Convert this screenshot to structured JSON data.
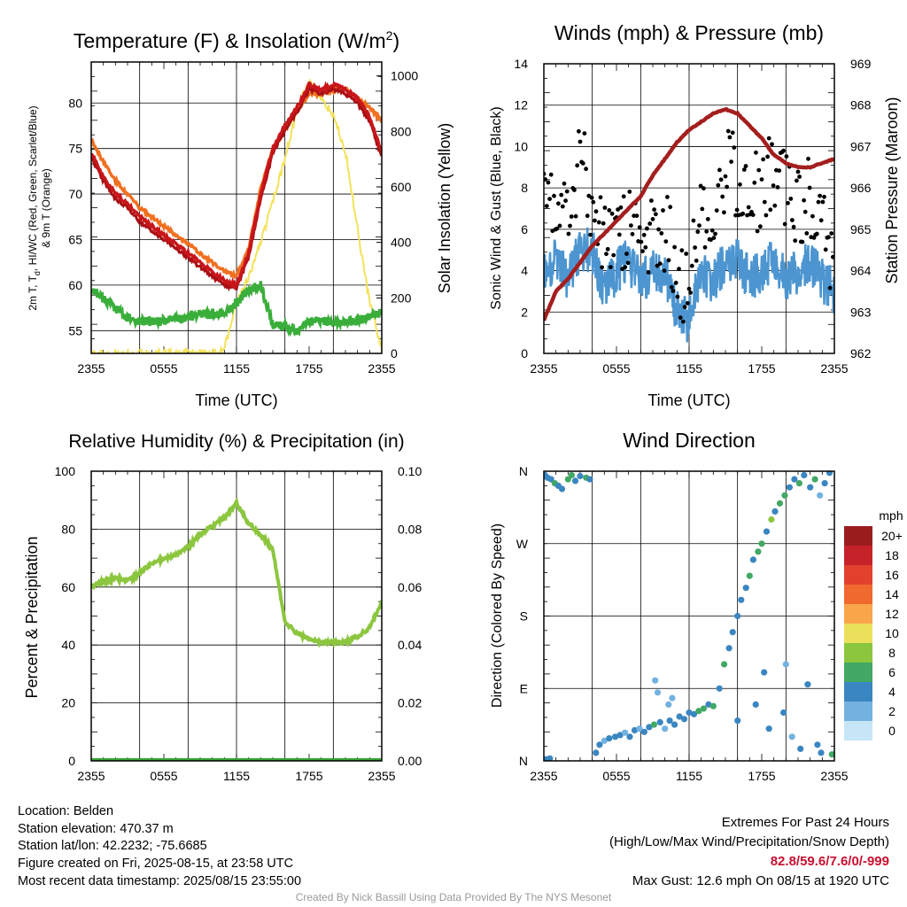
{
  "colors": {
    "temp": "#c8161b",
    "dewpoint": "#3aae3a",
    "hi_wc": "#2e8b2e",
    "temp9m": "#f07020",
    "solar": "#f3e25a",
    "sonic_wind": "#4c95d0",
    "gust": "#000000",
    "pressure": "#a41e1e",
    "rh": "#8cc63f",
    "precip": "#3aa63a"
  },
  "charts": {
    "temp": {
      "title": "Temperature (F) & Insolation (W/m",
      "title_sup": "2",
      "title_end": ")",
      "ylabel_left_line1": "2m T, T",
      "ylabel_left_sub": "d",
      "ylabel_left_line1_end": ", HI/WC (Red, Green, Scarlet/Blue)",
      "ylabel_left_line2": "& 9m T (Orange)",
      "ylabel_right": "Solar Insolation (Yellow)",
      "xlabel": "Time (UTC)"
    },
    "wind": {
      "title": "Winds (mph) & Pressure (mb)",
      "ylabel_left": "Sonic Wind & Gust (Blue, Black)",
      "ylabel_right": "Station Pressure (Maroon)",
      "xlabel": "Time (UTC)"
    },
    "rh": {
      "title": "Relative Humidity (%) & Precipitation (in)",
      "ylabel_left": "Percent & Precipitation"
    },
    "dir": {
      "title": "Wind Direction",
      "ylabel_left": "Direction (Colored By Speed)",
      "legend_title": "mph",
      "legend_labels": [
        "20+",
        "18",
        "16",
        "14",
        "12",
        "10",
        "8",
        "6",
        "4",
        "2",
        "0"
      ],
      "legend_colors": [
        "#9b1c1f",
        "#c5222a",
        "#e2412e",
        "#f0692f",
        "#f9a64a",
        "#ebe05c",
        "#8cc63f",
        "#42a864",
        "#3a86c1",
        "#73b2e0",
        "#c6e6f7"
      ]
    }
  },
  "chart_data": [
    {
      "type": "line",
      "title": "Temperature (F) & Insolation (W/m2)",
      "xlabel": "Time (UTC)",
      "ylabel": "2m T, Td, HI/WC (Red, Green, Scarlet/Blue) & 9m T (Orange)",
      "y2label": "Solar Insolation (Yellow)",
      "x_ticks": [
        "2355",
        "0555",
        "1155",
        "1755",
        "2355"
      ],
      "ylim": [
        52.5,
        84.5
      ],
      "y_ticks": [
        55,
        60,
        65,
        70,
        75,
        80
      ],
      "y2lim": [
        0,
        1050
      ],
      "y2_ticks": [
        0,
        200,
        400,
        600,
        800,
        1000
      ],
      "x_hours": [
        0,
        1,
        2,
        3,
        4,
        5,
        6,
        7,
        8,
        9,
        10,
        11,
        12,
        13,
        14,
        15,
        16,
        17,
        18,
        19,
        20,
        21,
        22,
        23,
        24
      ],
      "series": [
        {
          "name": "2m T",
          "axis": "left",
          "values": [
            74.5,
            72.0,
            70.0,
            69.0,
            67.5,
            66.5,
            65.5,
            64.5,
            63.5,
            62.5,
            61.5,
            60.5,
            60.0,
            63.5,
            70.0,
            75.0,
            77.5,
            79.5,
            82.0,
            81.5,
            82.0,
            81.5,
            80.5,
            78.5,
            74.5
          ]
        },
        {
          "name": "HI/WC",
          "axis": "left",
          "values": [
            74.0,
            71.5,
            69.5,
            68.5,
            67.0,
            66.0,
            65.0,
            64.0,
            63.0,
            62.0,
            61.0,
            60.0,
            59.7,
            63.0,
            69.5,
            74.5,
            77.0,
            79.0,
            81.5,
            81.0,
            81.5,
            81.0,
            80.0,
            78.0,
            74.0
          ]
        },
        {
          "name": "9m T",
          "axis": "left",
          "values": [
            76.0,
            73.5,
            71.5,
            70.0,
            68.5,
            67.5,
            66.5,
            65.5,
            64.5,
            63.5,
            62.5,
            61.5,
            61.0,
            64.0,
            70.5,
            75.0,
            77.0,
            79.0,
            81.0,
            81.0,
            81.5,
            81.5,
            80.5,
            79.5,
            78.0
          ]
        },
        {
          "name": "Td",
          "axis": "left",
          "values": [
            59.5,
            58.5,
            57.5,
            56.5,
            56.0,
            56.0,
            56.0,
            56.3,
            56.5,
            56.8,
            56.8,
            57.0,
            58.0,
            59.5,
            60.0,
            55.5,
            55.5,
            55.0,
            56.0,
            56.0,
            56.0,
            56.0,
            56.0,
            56.5,
            57.0
          ]
        },
        {
          "name": "Solar Insolation",
          "axis": "right",
          "values": [
            0,
            0,
            0,
            0,
            0,
            0,
            0,
            0,
            0,
            0,
            0,
            20,
            180,
            270,
            400,
            550,
            700,
            880,
            980,
            920,
            860,
            730,
            450,
            180,
            20
          ]
        }
      ]
    },
    {
      "type": "line",
      "title": "Winds (mph) & Pressure (mb)",
      "xlabel": "Time (UTC)",
      "ylabel": "Sonic Wind & Gust (Blue, Black)",
      "y2label": "Station Pressure (Maroon)",
      "x_ticks": [
        "2355",
        "0555",
        "1155",
        "1755",
        "2355"
      ],
      "ylim": [
        0,
        14
      ],
      "y_ticks": [
        0,
        2,
        4,
        6,
        8,
        10,
        12,
        14
      ],
      "y2lim": [
        962,
        969
      ],
      "y2_ticks": [
        962,
        963,
        964,
        965,
        966,
        967,
        968,
        969
      ],
      "x_hours": [
        0,
        1,
        2,
        3,
        4,
        5,
        6,
        7,
        8,
        9,
        10,
        11,
        12,
        13,
        14,
        15,
        16,
        17,
        18,
        19,
        20,
        21,
        22,
        23,
        24
      ],
      "series": [
        {
          "name": "Sonic Wind",
          "axis": "left",
          "values": [
            4.0,
            4.5,
            3.5,
            5.0,
            5.0,
            3.0,
            4.0,
            4.5,
            3.5,
            4.0,
            4.0,
            2.0,
            1.5,
            4.0,
            3.5,
            4.5,
            4.5,
            3.5,
            4.0,
            4.5,
            3.5,
            4.0,
            4.5,
            3.5,
            3.0
          ]
        },
        {
          "name": "Gust",
          "axis": "left",
          "values": [
            7.0,
            8.0,
            6.0,
            10.0,
            6.5,
            5.5,
            5.0,
            6.0,
            5.0,
            5.5,
            6.0,
            4.0,
            3.0,
            7.0,
            6.5,
            9.0,
            8.5,
            7.5,
            8.0,
            9.0,
            8.0,
            7.0,
            7.5,
            6.0,
            4.0
          ]
        },
        {
          "name": "Station Pressure",
          "axis": "right",
          "values": [
            962.8,
            963.5,
            963.8,
            964.2,
            964.6,
            964.9,
            965.2,
            965.5,
            965.8,
            966.3,
            966.7,
            967.1,
            967.4,
            967.6,
            967.8,
            967.9,
            967.8,
            967.5,
            967.2,
            966.8,
            966.6,
            966.5,
            966.5,
            966.6,
            966.7
          ]
        }
      ]
    },
    {
      "type": "line",
      "title": "Relative Humidity (%) & Precipitation (in)",
      "ylabel": "Percent & Precipitation",
      "x_ticks": [
        "2355",
        "0555",
        "1155",
        "1755",
        "2355"
      ],
      "ylim": [
        0,
        100
      ],
      "y_ticks": [
        0,
        20,
        40,
        60,
        80,
        100
      ],
      "y2lim": [
        0,
        0.1
      ],
      "y2_ticks": [
        "0.00",
        "0.02",
        "0.04",
        "0.06",
        "0.08",
        "0.10"
      ],
      "x_hours": [
        0,
        1,
        2,
        3,
        4,
        5,
        6,
        7,
        8,
        9,
        10,
        11,
        12,
        13,
        14,
        15,
        16,
        17,
        18,
        19,
        20,
        21,
        22,
        23,
        24
      ],
      "series": [
        {
          "name": "RH",
          "axis": "left",
          "values": [
            60,
            62,
            63,
            62,
            65,
            68,
            70,
            71,
            74,
            78,
            81,
            84,
            89,
            82,
            78,
            73,
            48,
            44,
            42,
            41,
            41,
            41,
            43,
            46,
            55
          ]
        },
        {
          "name": "Precipitation",
          "axis": "right",
          "values": [
            0,
            0,
            0,
            0,
            0,
            0,
            0,
            0,
            0,
            0,
            0,
            0,
            0,
            0,
            0,
            0,
            0,
            0,
            0,
            0,
            0,
            0,
            0,
            0,
            0
          ]
        }
      ]
    },
    {
      "type": "scatter",
      "title": "Wind Direction",
      "ylabel": "Direction (Colored By Speed)",
      "x_ticks": [
        "2355",
        "0555",
        "1155",
        "1755",
        "2355"
      ],
      "y_ticks": [
        "N",
        "E",
        "S",
        "W",
        "N"
      ],
      "ylim": [
        0,
        360
      ],
      "colorbar_label": "mph",
      "points_hour_deg_mph": [
        [
          0.1,
          355,
          3
        ],
        [
          0.3,
          352,
          3
        ],
        [
          0.6,
          350,
          4
        ],
        [
          0.9,
          345,
          5
        ],
        [
          1.2,
          342,
          3
        ],
        [
          1.5,
          338,
          4
        ],
        [
          2.0,
          350,
          6
        ],
        [
          2.3,
          355,
          5
        ],
        [
          2.6,
          348,
          4
        ],
        [
          3.0,
          354,
          3
        ],
        [
          3.5,
          352,
          6
        ],
        [
          3.8,
          350,
          4
        ],
        [
          0.2,
          2,
          4
        ],
        [
          0.5,
          3,
          4
        ],
        [
          4.3,
          10,
          3
        ],
        [
          4.6,
          20,
          4
        ],
        [
          5.0,
          25,
          2
        ],
        [
          5.4,
          28,
          3
        ],
        [
          5.9,
          30,
          4
        ],
        [
          6.3,
          32,
          3
        ],
        [
          6.7,
          35,
          2
        ],
        [
          7.1,
          30,
          4
        ],
        [
          7.5,
          38,
          3
        ],
        [
          7.9,
          40,
          2
        ],
        [
          8.3,
          36,
          4
        ],
        [
          8.7,
          42,
          3
        ],
        [
          9.1,
          45,
          5
        ],
        [
          9.6,
          48,
          4
        ],
        [
          10.0,
          40,
          2
        ],
        [
          10.4,
          50,
          3
        ],
        [
          10.8,
          45,
          4
        ],
        [
          11.2,
          55,
          4
        ],
        [
          11.6,
          52,
          3
        ],
        [
          12.0,
          60,
          4
        ],
        [
          12.4,
          58,
          3
        ],
        [
          12.8,
          62,
          5
        ],
        [
          13.2,
          65,
          6
        ],
        [
          13.6,
          70,
          4
        ],
        [
          14.0,
          68,
          5
        ],
        [
          9.2,
          100,
          1
        ],
        [
          9.4,
          85,
          2
        ],
        [
          10.3,
          70,
          1
        ],
        [
          10.6,
          78,
          2
        ],
        [
          14.5,
          90,
          4
        ],
        [
          14.9,
          120,
          5
        ],
        [
          15.3,
          140,
          4
        ],
        [
          15.6,
          160,
          3
        ],
        [
          16.0,
          180,
          3
        ],
        [
          16.3,
          200,
          4
        ],
        [
          16.7,
          215,
          3
        ],
        [
          17.0,
          230,
          5
        ],
        [
          17.3,
          250,
          4
        ],
        [
          17.7,
          260,
          6
        ],
        [
          18.0,
          270,
          5
        ],
        [
          18.4,
          285,
          4
        ],
        [
          18.8,
          300,
          7
        ],
        [
          19.1,
          310,
          3
        ],
        [
          19.5,
          320,
          5
        ],
        [
          19.9,
          330,
          6
        ],
        [
          20.3,
          340,
          4
        ],
        [
          20.7,
          350,
          3
        ],
        [
          21.1,
          345,
          5
        ],
        [
          21.5,
          355,
          4
        ],
        [
          22.0,
          340,
          3
        ],
        [
          22.4,
          350,
          6
        ],
        [
          22.8,
          330,
          2
        ],
        [
          23.2,
          345,
          3
        ],
        [
          23.6,
          358,
          4
        ],
        [
          16.0,
          50,
          4
        ],
        [
          17.5,
          70,
          3
        ],
        [
          18.6,
          40,
          4
        ],
        [
          19.8,
          60,
          3
        ],
        [
          20.5,
          30,
          2
        ],
        [
          21.2,
          15,
          3
        ],
        [
          22.6,
          20,
          4
        ],
        [
          23.8,
          8,
          6
        ],
        [
          18.2,
          110,
          3
        ],
        [
          20.0,
          120,
          2
        ],
        [
          21.8,
          95,
          4
        ],
        [
          22.9,
          10,
          3
        ]
      ]
    }
  ],
  "info": {
    "location": "Location: Belden",
    "elevation": "Station elevation: 470.37 m",
    "latlon": "Station lat/lon: 42.2232; -75.6685",
    "created": "Figure created on Fri, 2025-08-15, at 23:58 UTC",
    "recent": "Most recent data timestamp: 2025/08/15 23:55:00",
    "extremes_title": "Extremes For Past 24 Hours",
    "extremes_sub": "(High/Low/Max Wind/Precipitation/Snow Depth)",
    "extremes_values": "82.8/59.6/7.6/0/-999",
    "max_gust": "Max Gust: 12.6 mph On 08/15 at 1920 UTC",
    "credit": "Created By Nick Bassill Using Data Provided By The NYS Mesonet"
  }
}
